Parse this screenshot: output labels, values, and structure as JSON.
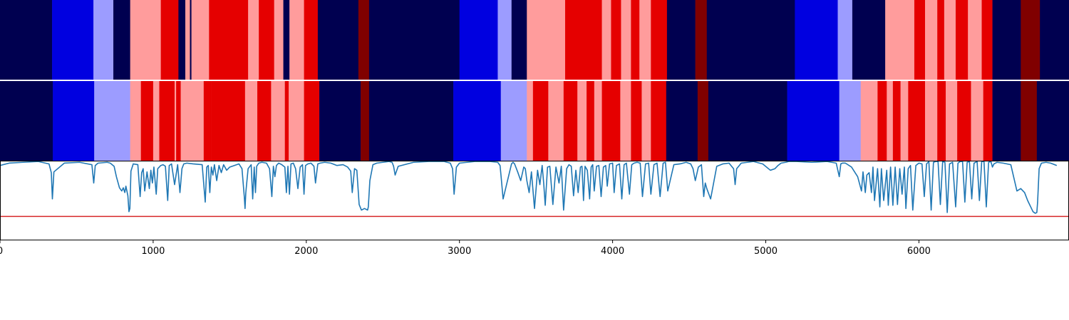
{
  "chart_data": {
    "type": "heatmap",
    "xlim": [
      0,
      6980
    ],
    "x_ticks": [
      0,
      1000,
      2000,
      3000,
      4000,
      5000,
      6000
    ],
    "tick_labels": [
      "0",
      "1000",
      "2000",
      "3000",
      "4000",
      "5000",
      "6000"
    ],
    "colors": {
      "class_0": "#000050",
      "class_1": "#0000e0",
      "class_2": "#9c9cff",
      "class_3": "#ff9c9c",
      "class_4": "#e50000",
      "class_5": "#800000",
      "curve": "#1f77b4",
      "threshold": "#d62728"
    },
    "rows": [
      {
        "segments": [
          [
            0,
            340,
            0
          ],
          [
            340,
            610,
            1
          ],
          [
            610,
            740,
            2
          ],
          [
            740,
            850,
            0
          ],
          [
            850,
            1050,
            3
          ],
          [
            1050,
            1165,
            4
          ],
          [
            1165,
            1210,
            0
          ],
          [
            1210,
            1240,
            3
          ],
          [
            1240,
            1250,
            0
          ],
          [
            1250,
            1365,
            3
          ],
          [
            1365,
            1620,
            4
          ],
          [
            1620,
            1690,
            3
          ],
          [
            1690,
            1790,
            4
          ],
          [
            1790,
            1850,
            3
          ],
          [
            1850,
            1890,
            0
          ],
          [
            1890,
            1985,
            3
          ],
          [
            1985,
            2075,
            4
          ],
          [
            2075,
            2340,
            0
          ],
          [
            2340,
            2410,
            5
          ],
          [
            2410,
            3000,
            0
          ],
          [
            3000,
            3250,
            1
          ],
          [
            3250,
            3340,
            2
          ],
          [
            3340,
            3440,
            0
          ],
          [
            3440,
            3690,
            3
          ],
          [
            3690,
            3930,
            4
          ],
          [
            3930,
            3990,
            3
          ],
          [
            3990,
            4055,
            4
          ],
          [
            4055,
            4120,
            3
          ],
          [
            4120,
            4175,
            4
          ],
          [
            4175,
            4250,
            3
          ],
          [
            4250,
            4355,
            4
          ],
          [
            4355,
            4540,
            0
          ],
          [
            4540,
            4615,
            5
          ],
          [
            4615,
            5190,
            0
          ],
          [
            5190,
            5470,
            1
          ],
          [
            5470,
            5565,
            2
          ],
          [
            5565,
            5780,
            0
          ],
          [
            5780,
            5970,
            3
          ],
          [
            5970,
            6040,
            4
          ],
          [
            6040,
            6120,
            3
          ],
          [
            6120,
            6165,
            4
          ],
          [
            6165,
            6240,
            3
          ],
          [
            6240,
            6320,
            4
          ],
          [
            6320,
            6410,
            3
          ],
          [
            6410,
            6480,
            4
          ],
          [
            6480,
            6665,
            0
          ],
          [
            6665,
            6790,
            5
          ],
          [
            6790,
            6980,
            0
          ]
        ]
      },
      {
        "segments": [
          [
            0,
            345,
            0
          ],
          [
            345,
            615,
            1
          ],
          [
            615,
            850,
            2
          ],
          [
            850,
            920,
            3
          ],
          [
            920,
            1000,
            4
          ],
          [
            1000,
            1040,
            3
          ],
          [
            1040,
            1140,
            4
          ],
          [
            1140,
            1150,
            3
          ],
          [
            1150,
            1180,
            4
          ],
          [
            1180,
            1330,
            3
          ],
          [
            1330,
            1380,
            4
          ],
          [
            1380,
            1600,
            4
          ],
          [
            1600,
            1680,
            3
          ],
          [
            1680,
            1770,
            4
          ],
          [
            1770,
            1860,
            3
          ],
          [
            1860,
            1885,
            4
          ],
          [
            1885,
            1985,
            3
          ],
          [
            1985,
            2085,
            4
          ],
          [
            2085,
            2355,
            0
          ],
          [
            2355,
            2410,
            5
          ],
          [
            2410,
            2960,
            0
          ],
          [
            2960,
            3270,
            1
          ],
          [
            3270,
            3440,
            2
          ],
          [
            3440,
            3480,
            3
          ],
          [
            3480,
            3580,
            4
          ],
          [
            3580,
            3680,
            3
          ],
          [
            3680,
            3770,
            4
          ],
          [
            3770,
            3830,
            3
          ],
          [
            3830,
            3880,
            4
          ],
          [
            3880,
            3930,
            3
          ],
          [
            3930,
            4050,
            4
          ],
          [
            4050,
            4120,
            3
          ],
          [
            4120,
            4190,
            4
          ],
          [
            4190,
            4250,
            3
          ],
          [
            4250,
            4350,
            4
          ],
          [
            4350,
            4555,
            0
          ],
          [
            4555,
            4625,
            5
          ],
          [
            4625,
            5140,
            0
          ],
          [
            5140,
            5480,
            1
          ],
          [
            5480,
            5620,
            2
          ],
          [
            5620,
            5730,
            3
          ],
          [
            5730,
            5790,
            4
          ],
          [
            5790,
            5830,
            3
          ],
          [
            5830,
            5880,
            4
          ],
          [
            5880,
            5930,
            3
          ],
          [
            5930,
            6040,
            4
          ],
          [
            6040,
            6120,
            3
          ],
          [
            6120,
            6175,
            4
          ],
          [
            6175,
            6250,
            3
          ],
          [
            6250,
            6340,
            4
          ],
          [
            6340,
            6420,
            3
          ],
          [
            6420,
            6480,
            4
          ],
          [
            6480,
            6665,
            0
          ],
          [
            6665,
            6770,
            5
          ],
          [
            6770,
            6980,
            0
          ]
        ]
      }
    ],
    "curve": {
      "ylim": [
        0,
        1
      ],
      "threshold": 0.3,
      "x": [
        0,
        60,
        150,
        250,
        320,
        335,
        342,
        352,
        420,
        520,
        600,
        612,
        622,
        640,
        700,
        720,
        745,
        760,
        780,
        795,
        805,
        815,
        822,
        835,
        842,
        848,
        855,
        870,
        900,
        915,
        925,
        935,
        945,
        960,
        975,
        985,
        995,
        1005,
        1020,
        1030,
        1050,
        1065,
        1080,
        1095,
        1105,
        1120,
        1140,
        1160,
        1175,
        1188,
        1200,
        1220,
        1260,
        1320,
        1340,
        1350,
        1360,
        1370,
        1380,
        1390,
        1400,
        1415,
        1430,
        1445,
        1460,
        1480,
        1500,
        1530,
        1560,
        1580,
        1595,
        1600,
        1605,
        1620,
        1640,
        1650,
        1660,
        1668,
        1676,
        1690,
        1710,
        1740,
        1760,
        1775,
        1785,
        1795,
        1805,
        1820,
        1840,
        1860,
        1870,
        1880,
        1890,
        1900,
        1915,
        1930,
        1945,
        1960,
        1975,
        1985,
        1995,
        2010,
        2030,
        2050,
        2060,
        2075,
        2090,
        2120,
        2160,
        2200,
        2240,
        2270,
        2290,
        2300,
        2315,
        2330,
        2345,
        2360,
        2380,
        2400,
        2405,
        2415,
        2435,
        2460,
        2500,
        2540,
        2560,
        2570,
        2580,
        2600,
        2700,
        2800,
        2900,
        2940,
        2955,
        2965,
        2980,
        3000,
        3100,
        3200,
        3250,
        3265,
        3272,
        3285,
        3320,
        3340,
        3350,
        3360,
        3380,
        3400,
        3420,
        3430,
        3440,
        3455,
        3470,
        3490,
        3510,
        3525,
        3540,
        3550,
        3560,
        3575,
        3590,
        3610,
        3630,
        3650,
        3665,
        3680,
        3700,
        3715,
        3730,
        3745,
        3760,
        3775,
        3790,
        3800,
        3810,
        3820,
        3835,
        3850,
        3860,
        3870,
        3880,
        3895,
        3910,
        3925,
        3940,
        3955,
        3965,
        3980,
        4000,
        4010,
        4025,
        4045,
        4060,
        4075,
        4090,
        4110,
        4125,
        4140,
        4160,
        4180,
        4195,
        4215,
        4235,
        4250,
        4270,
        4290,
        4310,
        4330,
        4345,
        4360,
        4400,
        4440,
        4480,
        4495,
        4510,
        4525,
        4540,
        4560,
        4580,
        4595,
        4605,
        4615,
        4640,
        4680,
        4720,
        4760,
        4790,
        4800,
        4810,
        4840,
        4880,
        4920,
        4980,
        5030,
        5060,
        5080,
        5100,
        5130,
        5150,
        5200,
        5300,
        5400,
        5460,
        5480,
        5490,
        5500,
        5520,
        5560,
        5600,
        5625,
        5635,
        5650,
        5660,
        5675,
        5690,
        5700,
        5710,
        5730,
        5745,
        5755,
        5770,
        5790,
        5800,
        5815,
        5830,
        5845,
        5860,
        5875,
        5890,
        5905,
        5915,
        5930,
        5945,
        5960,
        5980,
        6000,
        6020,
        6035,
        6050,
        6065,
        6080,
        6095,
        6110,
        6125,
        6140,
        6155,
        6170,
        6185,
        6200,
        6220,
        6240,
        6255,
        6270,
        6285,
        6300,
        6315,
        6330,
        6345,
        6360,
        6380,
        6395,
        6410,
        6425,
        6440,
        6455,
        6470,
        6480,
        6490,
        6510,
        6550,
        6600,
        6640,
        6665,
        6690,
        6710,
        6730,
        6745,
        6760,
        6770,
        6775,
        6785,
        6800,
        6830,
        6860,
        6900,
        6940,
        6980
      ],
      "y": [
        0.94,
        0.97,
        0.98,
        0.99,
        0.96,
        0.85,
        0.52,
        0.86,
        0.97,
        0.98,
        0.95,
        0.72,
        0.94,
        0.97,
        0.98,
        0.97,
        0.93,
        0.8,
        0.66,
        0.62,
        0.66,
        0.6,
        0.68,
        0.56,
        0.36,
        0.4,
        0.87,
        0.96,
        0.95,
        0.55,
        0.85,
        0.9,
        0.62,
        0.86,
        0.65,
        0.88,
        0.72,
        0.92,
        0.58,
        0.9,
        0.94,
        0.95,
        0.93,
        0.5,
        0.94,
        0.96,
        0.7,
        0.95,
        0.6,
        0.9,
        0.96,
        0.97,
        0.96,
        0.95,
        0.48,
        0.92,
        0.94,
        0.6,
        0.92,
        0.82,
        0.95,
        0.75,
        0.94,
        0.85,
        0.95,
        0.88,
        0.92,
        0.94,
        0.96,
        0.9,
        0.55,
        0.4,
        0.6,
        0.9,
        0.95,
        0.52,
        0.92,
        0.6,
        0.93,
        0.97,
        0.98,
        0.97,
        0.9,
        0.55,
        0.93,
        0.8,
        0.94,
        0.97,
        0.95,
        0.92,
        0.6,
        0.93,
        0.58,
        0.96,
        0.97,
        0.9,
        0.65,
        0.92,
        0.95,
        0.58,
        0.94,
        0.96,
        0.97,
        0.93,
        0.72,
        0.96,
        0.97,
        0.98,
        0.97,
        0.94,
        0.95,
        0.92,
        0.87,
        0.6,
        0.9,
        0.88,
        0.45,
        0.38,
        0.4,
        0.38,
        0.42,
        0.75,
        0.95,
        0.97,
        0.98,
        0.99,
        0.98,
        0.93,
        0.82,
        0.93,
        0.98,
        0.99,
        0.99,
        0.97,
        0.9,
        0.58,
        0.92,
        0.97,
        0.99,
        0.99,
        0.98,
        0.94,
        0.8,
        0.52,
        0.8,
        0.96,
        0.98,
        0.96,
        0.86,
        0.75,
        0.92,
        0.9,
        0.75,
        0.6,
        0.86,
        0.4,
        0.88,
        0.7,
        0.94,
        0.72,
        0.44,
        0.92,
        0.93,
        0.45,
        0.92,
        0.72,
        0.93,
        0.38,
        0.9,
        0.95,
        0.93,
        0.56,
        0.88,
        0.6,
        0.92,
        0.93,
        0.5,
        0.93,
        0.88,
        0.52,
        0.92,
        0.95,
        0.62,
        0.93,
        0.94,
        0.55,
        0.92,
        0.94,
        0.68,
        0.96,
        0.97,
        0.6,
        0.94,
        0.96,
        0.52,
        0.95,
        0.97,
        0.58,
        0.95,
        0.97,
        0.98,
        0.97,
        0.55,
        0.96,
        0.97,
        0.58,
        0.95,
        0.97,
        0.55,
        0.97,
        0.98,
        0.62,
        0.95,
        0.96,
        0.98,
        0.97,
        0.96,
        0.9,
        0.75,
        0.92,
        0.95,
        0.55,
        0.72,
        0.65,
        0.52,
        0.93,
        0.96,
        0.97,
        0.9,
        0.7,
        0.9,
        0.97,
        0.98,
        0.99,
        0.96,
        0.88,
        0.9,
        0.94,
        0.97,
        0.98,
        0.99,
        0.99,
        0.98,
        0.99,
        0.97,
        0.8,
        0.96,
        0.97,
        0.97,
        0.92,
        0.8,
        0.62,
        0.86,
        0.6,
        0.82,
        0.85,
        0.6,
        0.92,
        0.5,
        0.9,
        0.42,
        0.9,
        0.5,
        0.88,
        0.44,
        0.92,
        0.44,
        0.92,
        0.45,
        0.9,
        0.58,
        0.92,
        0.4,
        0.9,
        0.94,
        0.38,
        0.94,
        0.97,
        0.96,
        0.55,
        0.96,
        0.99,
        0.38,
        0.98,
        0.99,
        0.99,
        0.45,
        0.99,
        0.98,
        0.35,
        0.96,
        0.98,
        0.42,
        0.97,
        0.99,
        0.99,
        0.48,
        0.98,
        0.99,
        0.52,
        0.97,
        0.99,
        0.5,
        0.99,
        0.99,
        0.42,
        0.98,
        0.99,
        0.92,
        0.96,
        0.98,
        0.97,
        0.95,
        0.62,
        0.65,
        0.6,
        0.5,
        0.42,
        0.36,
        0.34,
        0.35,
        0.48,
        0.9,
        0.97,
        0.98,
        0.97,
        0.94
      ]
    }
  }
}
